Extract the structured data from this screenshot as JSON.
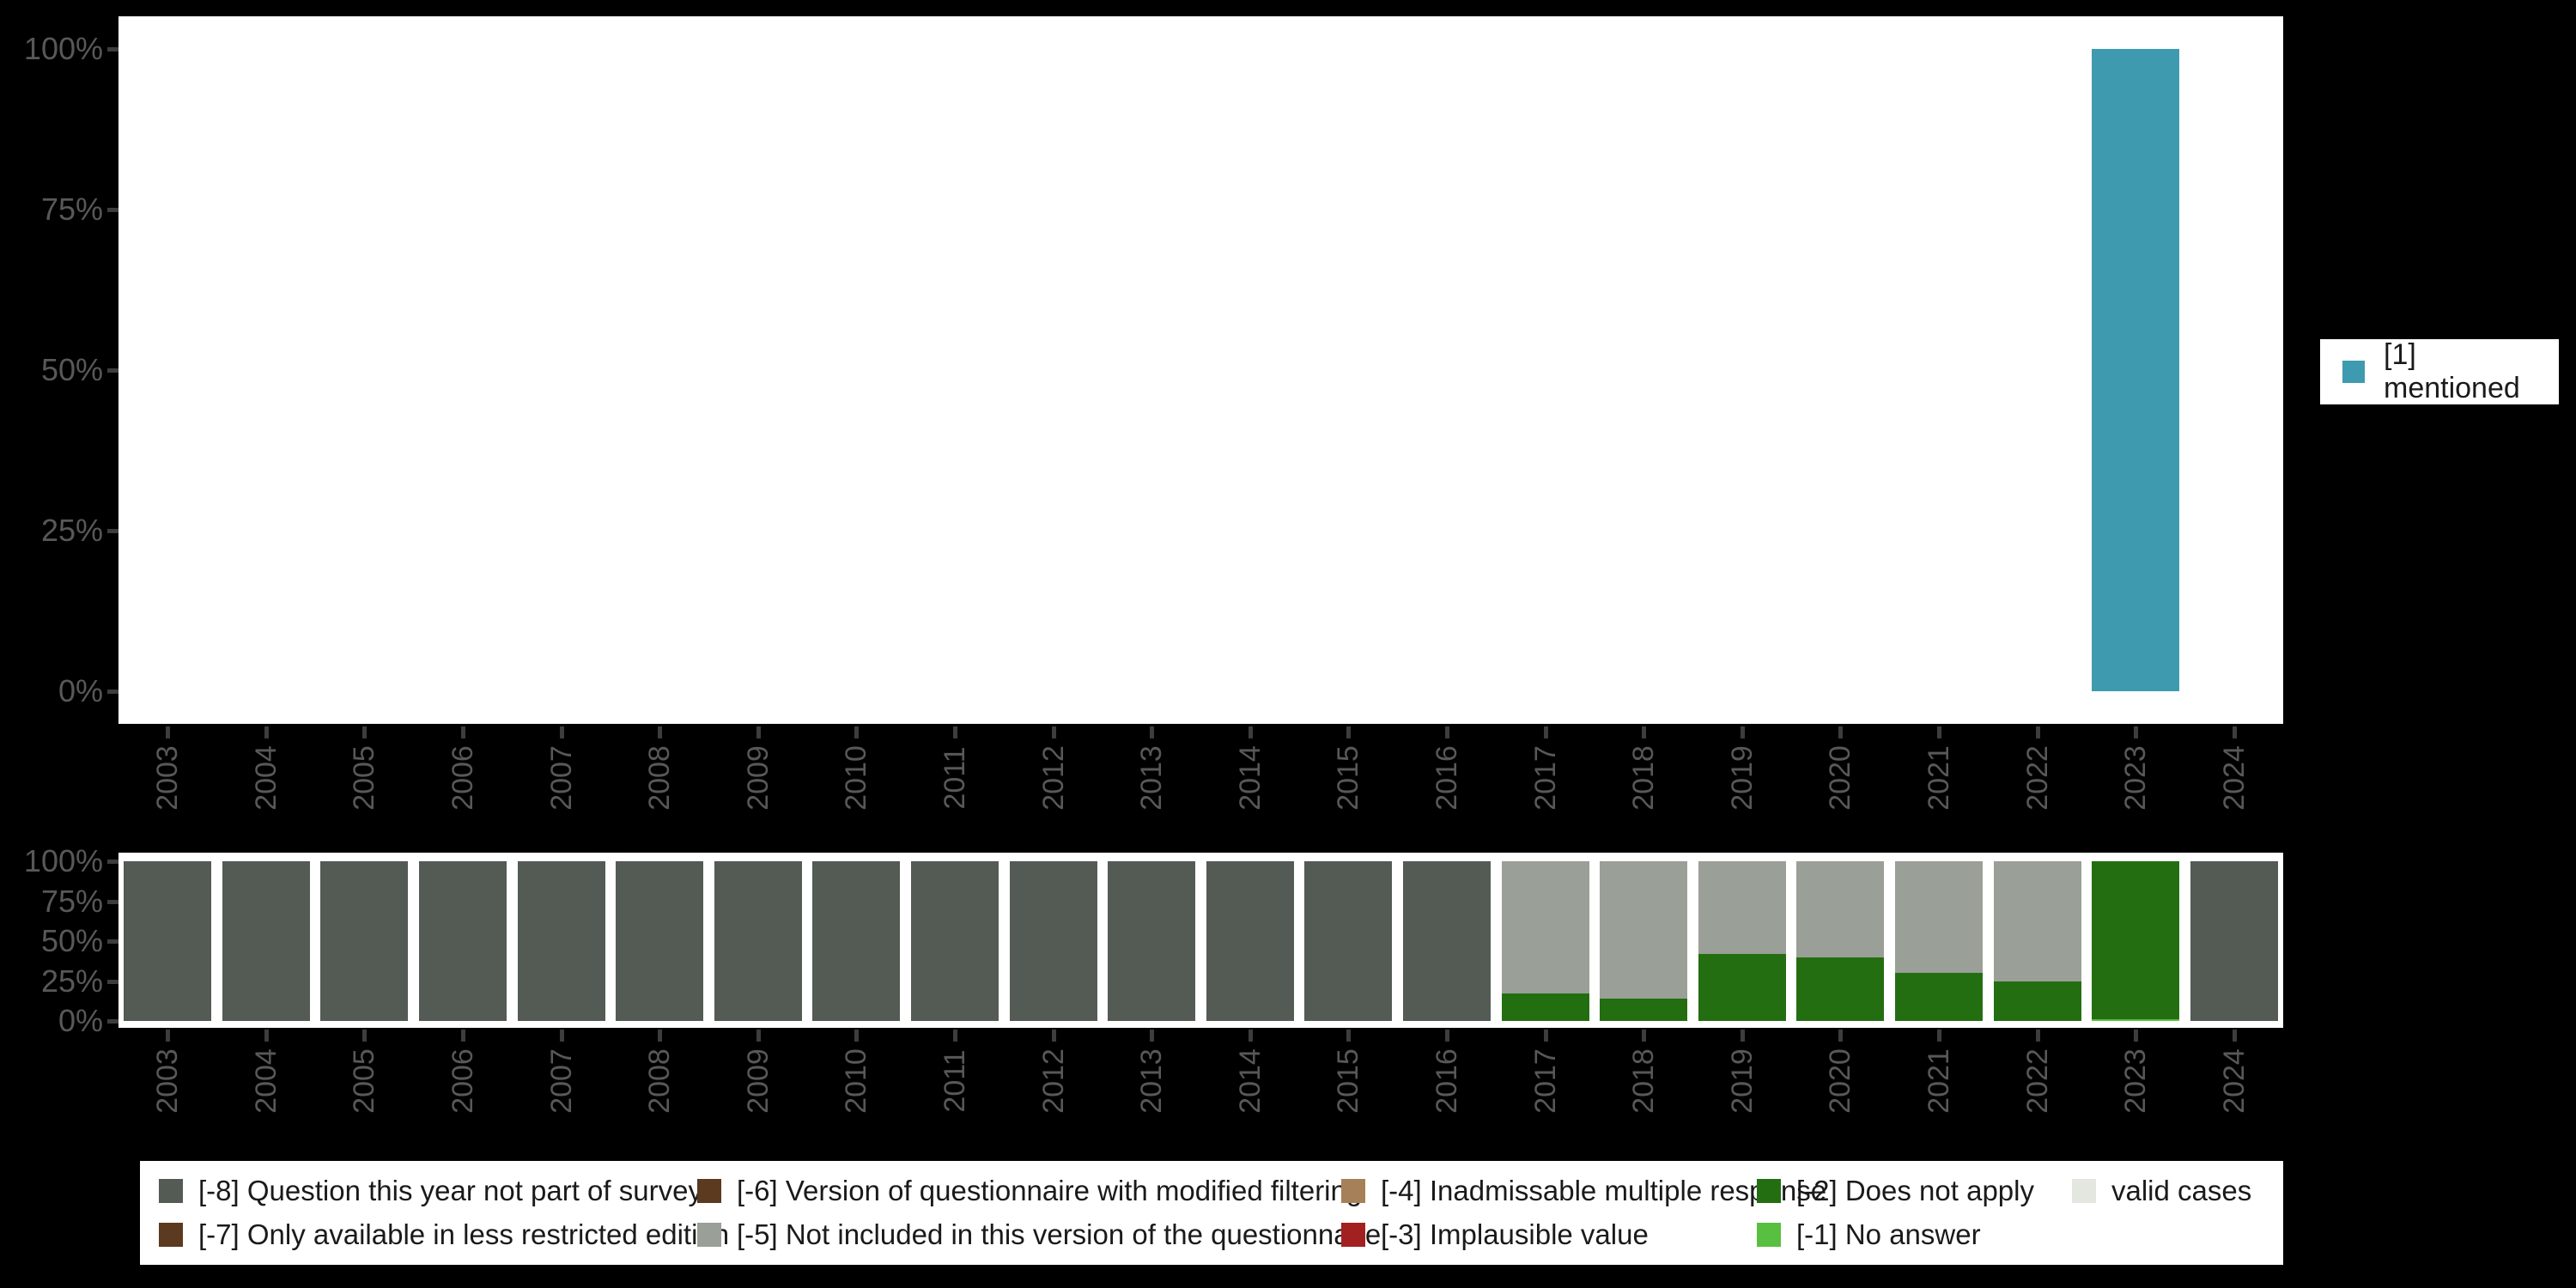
{
  "colors": {
    "background": "#000000",
    "plot_background": "#ffffff",
    "axis_text": "#585858",
    "tick": "#3d3d3d",
    "legend_text": "#1a1a1a"
  },
  "years": [
    "2003",
    "2004",
    "2005",
    "2006",
    "2007",
    "2008",
    "2009",
    "2010",
    "2011",
    "2012",
    "2013",
    "2014",
    "2015",
    "2016",
    "2017",
    "2018",
    "2019",
    "2020",
    "2021",
    "2022",
    "2023",
    "2024"
  ],
  "y_tick_labels": [
    "100%",
    "75%",
    "50%",
    "25%",
    "0%"
  ],
  "legend_right": {
    "items": [
      {
        "label": "[1] mentioned",
        "color": "#3e9aaf"
      }
    ]
  },
  "legend_bottom": {
    "entries": [
      {
        "code": "-8",
        "label": "[-8] Question this year not part of survey",
        "color": "#535b54"
      },
      {
        "code": "-7",
        "label": "[-7] Only available in less restricted edition",
        "color": "#5b3a20"
      },
      {
        "code": "-6",
        "label": "[-6] Version of questionnaire with modified filtering",
        "color": "#5b3a20"
      },
      {
        "code": "-5",
        "label": "[-5] Not included in this version of the questionnaire",
        "color": "#9a9f97"
      },
      {
        "code": "-4",
        "label": "[-4] Inadmissable multiple response",
        "color": "#a58058"
      },
      {
        "code": "-3",
        "label": "[-3] Implausible value",
        "color": "#a32020"
      },
      {
        "code": "-2",
        "label": "[-2] Does not apply",
        "color": "#236e11"
      },
      {
        "code": "-1",
        "label": "[-1] No answer",
        "color": "#59bf40"
      },
      {
        "code": "valid",
        "label": "valid cases",
        "color": "#e3e7e0"
      }
    ]
  },
  "chart_data": [
    {
      "type": "bar",
      "title": "",
      "stacked": true,
      "legend_position": "right",
      "grid": false,
      "ylim": [
        0,
        100
      ],
      "ytick_labels": [
        "0%",
        "25%",
        "50%",
        "75%",
        "100%"
      ],
      "categories": [
        "2003",
        "2004",
        "2005",
        "2006",
        "2007",
        "2008",
        "2009",
        "2010",
        "2011",
        "2012",
        "2013",
        "2014",
        "2015",
        "2016",
        "2017",
        "2018",
        "2019",
        "2020",
        "2021",
        "2022",
        "2023",
        "2024"
      ],
      "series": [
        {
          "code": "1",
          "name": "[1] mentioned",
          "color": "#3e9aaf",
          "values": [
            0,
            0,
            0,
            0,
            0,
            0,
            0,
            0,
            0,
            0,
            0,
            0,
            0,
            0,
            0,
            0,
            0,
            0,
            0,
            0,
            100,
            0
          ]
        }
      ]
    },
    {
      "type": "bar",
      "title": "",
      "stacked": true,
      "legend_position": "bottom",
      "grid": false,
      "ylim": [
        0,
        100
      ],
      "ytick_labels": [
        "0%",
        "25%",
        "50%",
        "75%",
        "100%"
      ],
      "categories": [
        "2003",
        "2004",
        "2005",
        "2006",
        "2007",
        "2008",
        "2009",
        "2010",
        "2011",
        "2012",
        "2013",
        "2014",
        "2015",
        "2016",
        "2017",
        "2018",
        "2019",
        "2020",
        "2021",
        "2022",
        "2023",
        "2024"
      ],
      "stack_order": "bottom-to-top",
      "series": [
        {
          "code": "valid",
          "name": "valid cases",
          "color": "#e3e7e0",
          "values": [
            0,
            0,
            0,
            0,
            0,
            0,
            0,
            0,
            0,
            0,
            0,
            0,
            0,
            0,
            0,
            0,
            0,
            0,
            0,
            0,
            0,
            0
          ]
        },
        {
          "code": "-1",
          "name": "[-1] No answer",
          "color": "#59bf40",
          "values": [
            0,
            0,
            0,
            0,
            0,
            0,
            0,
            0,
            0,
            0,
            0,
            0,
            0,
            0,
            0,
            0,
            0,
            0,
            0,
            0,
            1,
            0
          ]
        },
        {
          "code": "-2",
          "name": "[-2] Does not apply",
          "color": "#236e11",
          "values": [
            0,
            0,
            0,
            0,
            0,
            0,
            0,
            0,
            0,
            0,
            0,
            0,
            0,
            0,
            17,
            14,
            42,
            40,
            30,
            25,
            99,
            0
          ]
        },
        {
          "code": "-3",
          "name": "[-3] Implausible value",
          "color": "#a32020",
          "values": [
            0,
            0,
            0,
            0,
            0,
            0,
            0,
            0,
            0,
            0,
            0,
            0,
            0,
            0,
            0,
            0,
            0,
            0,
            0,
            0,
            0,
            0
          ]
        },
        {
          "code": "-4",
          "name": "[-4] Inadmissable multiple response",
          "color": "#a58058",
          "values": [
            0,
            0,
            0,
            0,
            0,
            0,
            0,
            0,
            0,
            0,
            0,
            0,
            0,
            0,
            0,
            0,
            0,
            0,
            0,
            0,
            0,
            0
          ]
        },
        {
          "code": "-5",
          "name": "[-5] Not included in this version of the questionnaire",
          "color": "#9a9f97",
          "values": [
            0,
            0,
            0,
            0,
            0,
            0,
            0,
            0,
            0,
            0,
            0,
            0,
            0,
            0,
            83,
            86,
            58,
            60,
            70,
            75,
            0,
            0
          ]
        },
        {
          "code": "-6",
          "name": "[-6] Version of questionnaire with modified filtering",
          "color": "#5b3a20",
          "values": [
            0,
            0,
            0,
            0,
            0,
            0,
            0,
            0,
            0,
            0,
            0,
            0,
            0,
            0,
            0,
            0,
            0,
            0,
            0,
            0,
            0,
            0
          ]
        },
        {
          "code": "-7",
          "name": "[-7] Only available in less restricted edition",
          "color": "#5b3a20",
          "values": [
            0,
            0,
            0,
            0,
            0,
            0,
            0,
            0,
            0,
            0,
            0,
            0,
            0,
            0,
            0,
            0,
            0,
            0,
            0,
            0,
            0,
            0
          ]
        },
        {
          "code": "-8",
          "name": "[-8] Question this year not part of survey",
          "color": "#535b54",
          "values": [
            100,
            100,
            100,
            100,
            100,
            100,
            100,
            100,
            100,
            100,
            100,
            100,
            100,
            100,
            0,
            0,
            0,
            0,
            0,
            0,
            0,
            100
          ]
        }
      ]
    }
  ]
}
